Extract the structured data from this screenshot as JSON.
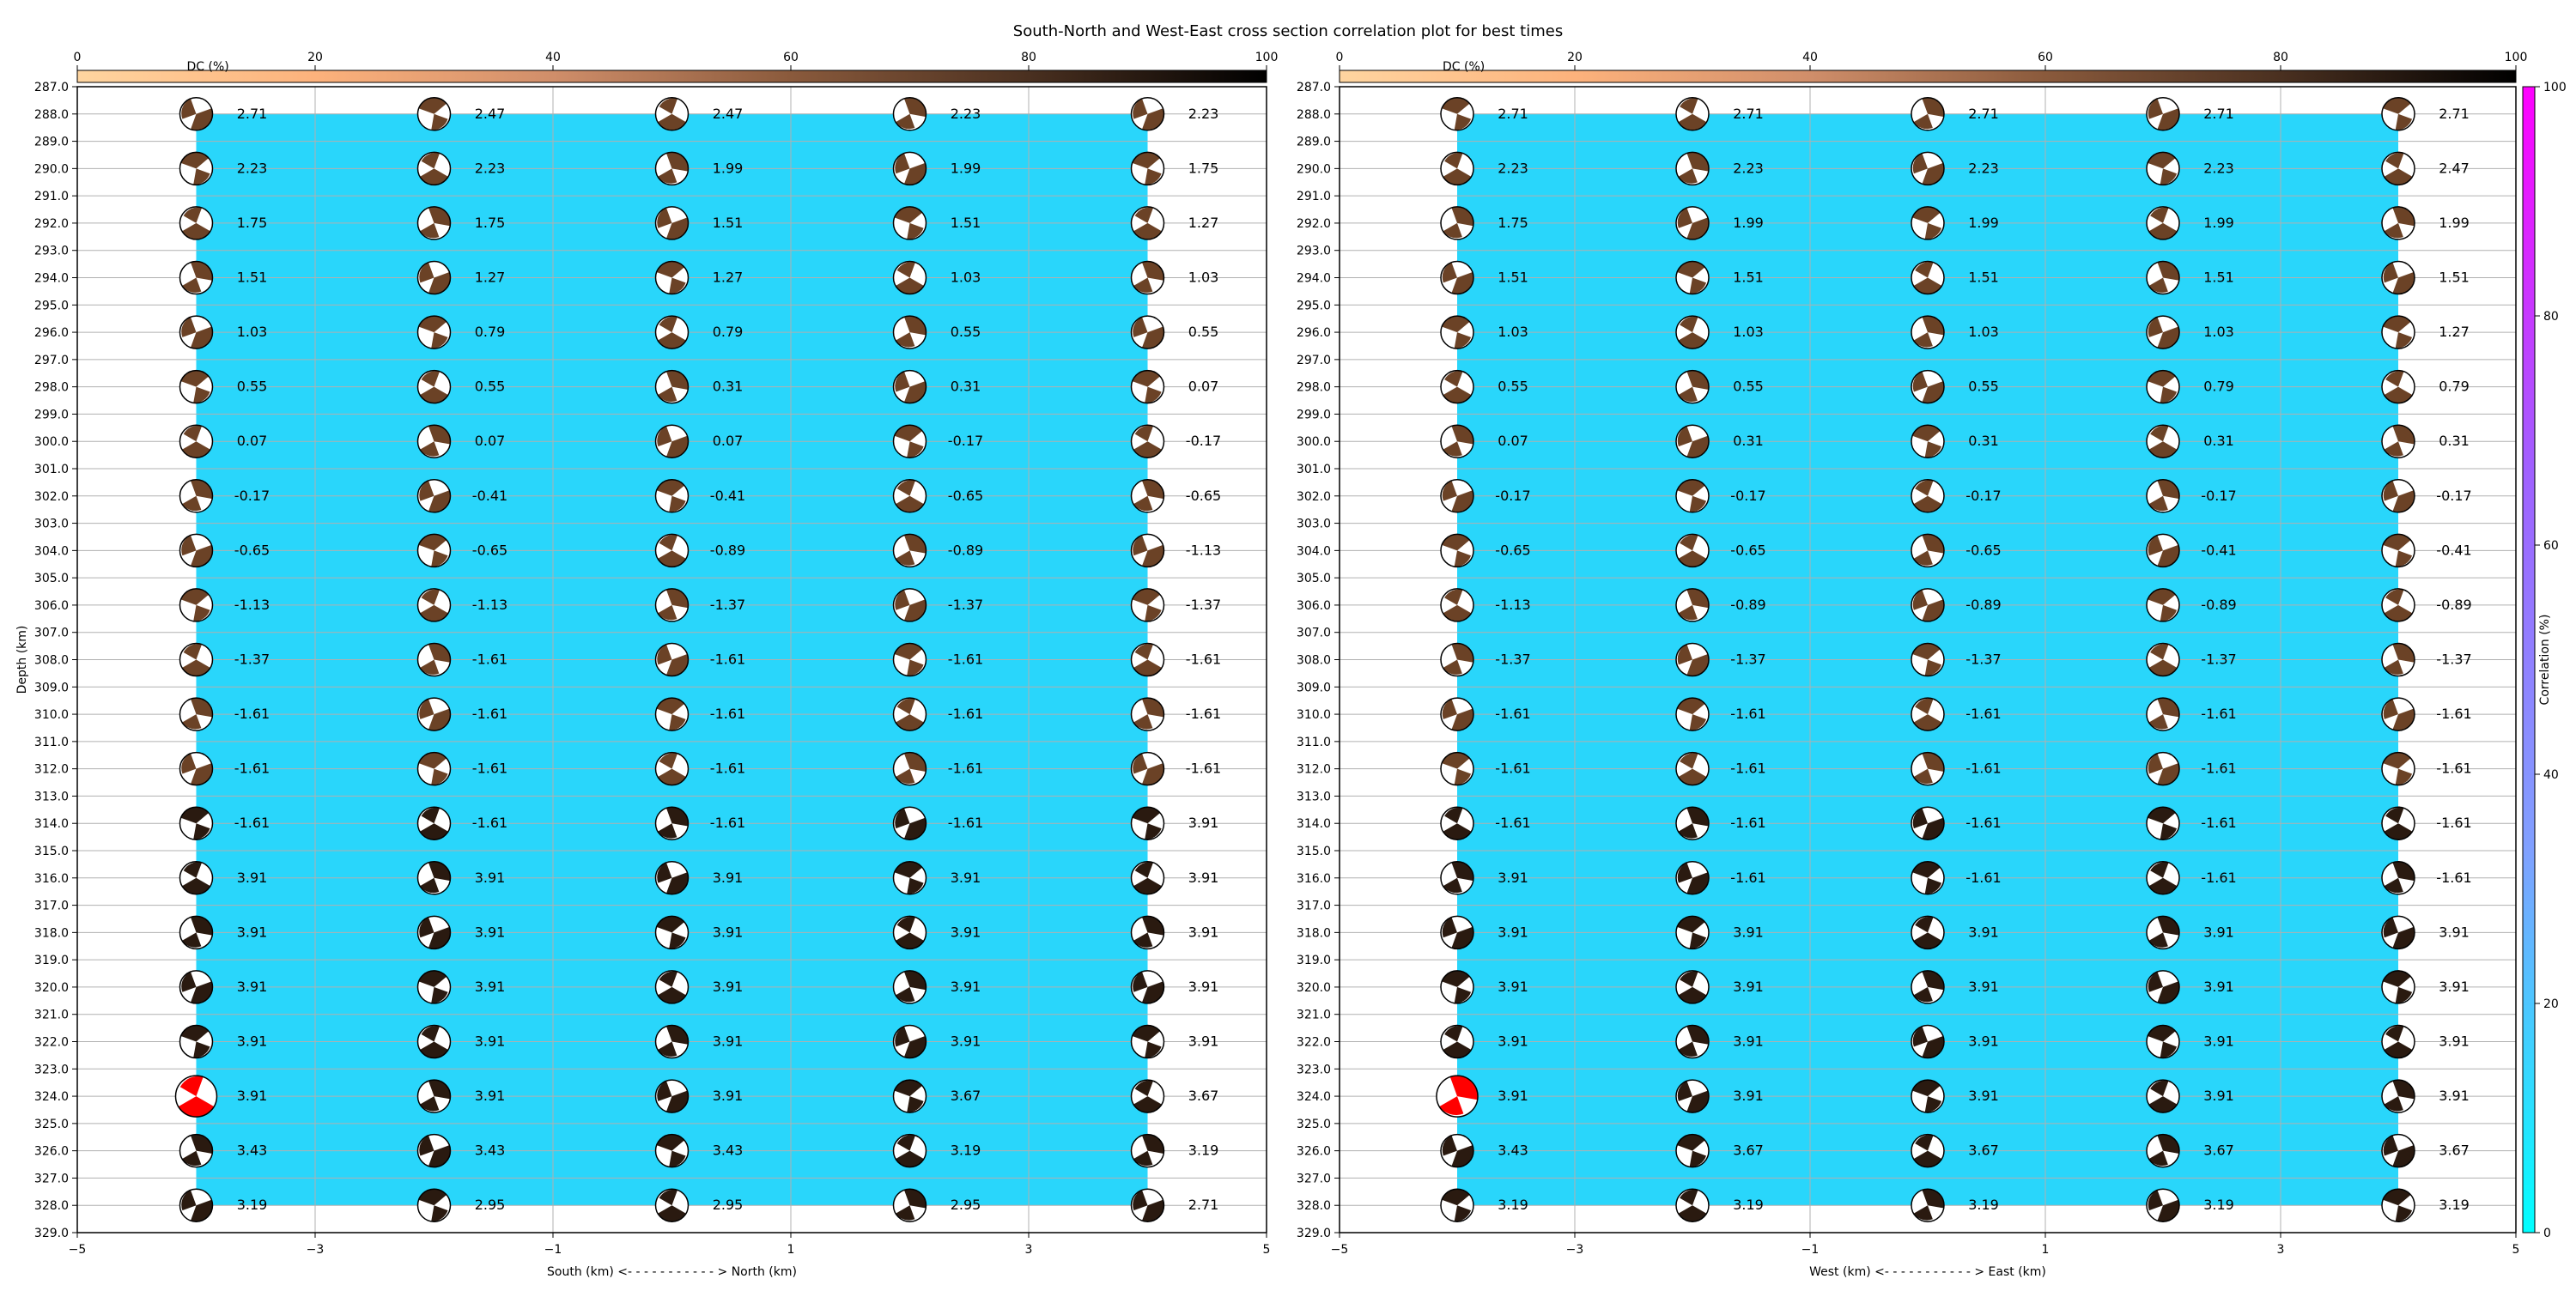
{
  "figure": {
    "title": "South-North and West-East cross section correlation plot for best times"
  },
  "colors": {
    "panel_fill": "#29d6fb",
    "grid": "#b0b0b0",
    "dc_colormap": [
      "#fed5a0",
      "#fdb27c",
      "#d08e6a",
      "#8a5a3c",
      "#4a3020",
      "#000000"
    ],
    "correlation_colormap": [
      "#00ffff",
      "#80a0ff",
      "#a060ff",
      "#ff00ff"
    ],
    "best_solution": "#ff0000"
  },
  "colorbars": {
    "dc": {
      "label": "DC (%)",
      "ticks": [
        "0",
        "20",
        "40",
        "60",
        "80",
        "100"
      ]
    },
    "correlation": {
      "label": "Correlation (%)",
      "ticks": [
        "0",
        "20",
        "40",
        "60",
        "80",
        "100"
      ]
    }
  },
  "chart_data": [
    {
      "type": "scatter",
      "title": "",
      "xlabel": "South (km) <- - - - - - - - - - - > North (km)",
      "ylabel": "Depth (km)",
      "xlim": [
        -5,
        5
      ],
      "ylim": [
        329,
        287
      ],
      "x_ticks": [
        -5,
        -3,
        -1,
        1,
        3,
        5
      ],
      "x_tick_labels": [
        "−5",
        "−3",
        "−1",
        "1",
        "3",
        "5"
      ],
      "y_tick_labels": [
        "287.0",
        "288.0",
        "289.0",
        "290.0",
        "291.0",
        "292.0",
        "293.0",
        "294.0",
        "295.0",
        "296.0",
        "297.0",
        "298.0",
        "299.0",
        "300.0",
        "301.0",
        "302.0",
        "303.0",
        "304.0",
        "305.0",
        "306.0",
        "307.0",
        "308.0",
        "309.0",
        "310.0",
        "311.0",
        "312.0",
        "313.0",
        "314.0",
        "315.0",
        "316.0",
        "317.0",
        "318.0",
        "319.0",
        "320.0",
        "321.0",
        "322.0",
        "323.0",
        "324.0",
        "325.0",
        "326.0",
        "327.0",
        "328.0",
        "329.0"
      ],
      "grid": true,
      "x": [
        -4,
        -2,
        0,
        2,
        4
      ],
      "depths": [
        288,
        290,
        292,
        294,
        296,
        298,
        300,
        302,
        304,
        306,
        308,
        310,
        312,
        314,
        316,
        318,
        320,
        322,
        324,
        326,
        328
      ],
      "time_labels": [
        [
          "2.71",
          "2.47",
          "2.47",
          "2.23",
          "2.23"
        ],
        [
          "2.23",
          "2.23",
          "1.99",
          "1.99",
          "1.75"
        ],
        [
          "1.75",
          "1.75",
          "1.51",
          "1.51",
          "1.27"
        ],
        [
          "1.51",
          "1.27",
          "1.27",
          "1.03",
          "1.03"
        ],
        [
          "1.03",
          "0.79",
          "0.79",
          "0.55",
          "0.55"
        ],
        [
          "0.55",
          "0.55",
          "0.31",
          "0.31",
          "0.07"
        ],
        [
          "0.07",
          "0.07",
          "0.07",
          "-0.17",
          "-0.17"
        ],
        [
          "-0.17",
          "-0.41",
          "-0.41",
          "-0.65",
          "-0.65"
        ],
        [
          "-0.65",
          "-0.65",
          "-0.89",
          "-0.89",
          "-1.13"
        ],
        [
          "-1.13",
          "-1.13",
          "-1.37",
          "-1.37",
          "-1.37"
        ],
        [
          "-1.37",
          "-1.61",
          "-1.61",
          "-1.61",
          "-1.61"
        ],
        [
          "-1.61",
          "-1.61",
          "-1.61",
          "-1.61",
          "-1.61"
        ],
        [
          "-1.61",
          "-1.61",
          "-1.61",
          "-1.61",
          "-1.61"
        ],
        [
          "-1.61",
          "-1.61",
          "-1.61",
          "-1.61",
          "3.91"
        ],
        [
          "3.91",
          "3.91",
          "3.91",
          "3.91",
          "3.91"
        ],
        [
          "3.91",
          "3.91",
          "3.91",
          "3.91",
          "3.91"
        ],
        [
          "3.91",
          "3.91",
          "3.91",
          "3.91",
          "3.91"
        ],
        [
          "3.91",
          "3.91",
          "3.91",
          "3.91",
          "3.91"
        ],
        [
          "3.91",
          "3.91",
          "3.91",
          "3.67",
          "3.67"
        ],
        [
          "3.43",
          "3.43",
          "3.43",
          "3.19",
          "3.19"
        ],
        [
          "3.19",
          "2.95",
          "2.95",
          "2.95",
          "2.71"
        ]
      ],
      "best_solution": {
        "x": -4,
        "depth": 324
      }
    },
    {
      "type": "scatter",
      "title": "",
      "xlabel": "West (km) <- - - - - - - - - - - > East (km)",
      "ylabel": "",
      "xlim": [
        -5,
        5
      ],
      "ylim": [
        329,
        287
      ],
      "x_ticks": [
        -5,
        -3,
        -1,
        1,
        3,
        5
      ],
      "x_tick_labels": [
        "−5",
        "−3",
        "−1",
        "1",
        "3",
        "5"
      ],
      "y_tick_labels": [
        "287.0",
        "288.0",
        "289.0",
        "290.0",
        "291.0",
        "292.0",
        "293.0",
        "294.0",
        "295.0",
        "296.0",
        "297.0",
        "298.0",
        "299.0",
        "300.0",
        "301.0",
        "302.0",
        "303.0",
        "304.0",
        "305.0",
        "306.0",
        "307.0",
        "308.0",
        "309.0",
        "310.0",
        "311.0",
        "312.0",
        "313.0",
        "314.0",
        "315.0",
        "316.0",
        "317.0",
        "318.0",
        "319.0",
        "320.0",
        "321.0",
        "322.0",
        "323.0",
        "324.0",
        "325.0",
        "326.0",
        "327.0",
        "328.0",
        "329.0"
      ],
      "grid": true,
      "x": [
        -4,
        -2,
        0,
        2,
        4
      ],
      "depths": [
        288,
        290,
        292,
        294,
        296,
        298,
        300,
        302,
        304,
        306,
        308,
        310,
        312,
        314,
        316,
        318,
        320,
        322,
        324,
        326,
        328
      ],
      "time_labels": [
        [
          "2.71",
          "2.71",
          "2.71",
          "2.71",
          "2.71"
        ],
        [
          "2.23",
          "2.23",
          "2.23",
          "2.23",
          "2.47"
        ],
        [
          "1.75",
          "1.99",
          "1.99",
          "1.99",
          "1.99"
        ],
        [
          "1.51",
          "1.51",
          "1.51",
          "1.51",
          "1.51"
        ],
        [
          "1.03",
          "1.03",
          "1.03",
          "1.03",
          "1.27"
        ],
        [
          "0.55",
          "0.55",
          "0.55",
          "0.79",
          "0.79"
        ],
        [
          "0.07",
          "0.31",
          "0.31",
          "0.31",
          "0.31"
        ],
        [
          "-0.17",
          "-0.17",
          "-0.17",
          "-0.17",
          "-0.17"
        ],
        [
          "-0.65",
          "-0.65",
          "-0.65",
          "-0.41",
          "-0.41"
        ],
        [
          "-1.13",
          "-0.89",
          "-0.89",
          "-0.89",
          "-0.89"
        ],
        [
          "-1.37",
          "-1.37",
          "-1.37",
          "-1.37",
          "-1.37"
        ],
        [
          "-1.61",
          "-1.61",
          "-1.61",
          "-1.61",
          "-1.61"
        ],
        [
          "-1.61",
          "-1.61",
          "-1.61",
          "-1.61",
          "-1.61"
        ],
        [
          "-1.61",
          "-1.61",
          "-1.61",
          "-1.61",
          "-1.61"
        ],
        [
          "3.91",
          "-1.61",
          "-1.61",
          "-1.61",
          "-1.61"
        ],
        [
          "3.91",
          "3.91",
          "3.91",
          "3.91",
          "3.91"
        ],
        [
          "3.91",
          "3.91",
          "3.91",
          "3.91",
          "3.91"
        ],
        [
          "3.91",
          "3.91",
          "3.91",
          "3.91",
          "3.91"
        ],
        [
          "3.91",
          "3.91",
          "3.91",
          "3.91",
          "3.91"
        ],
        [
          "3.43",
          "3.67",
          "3.67",
          "3.67",
          "3.67"
        ],
        [
          "3.19",
          "3.19",
          "3.19",
          "3.19",
          "3.19"
        ]
      ],
      "best_solution": {
        "x": -4,
        "depth": 324
      }
    }
  ]
}
